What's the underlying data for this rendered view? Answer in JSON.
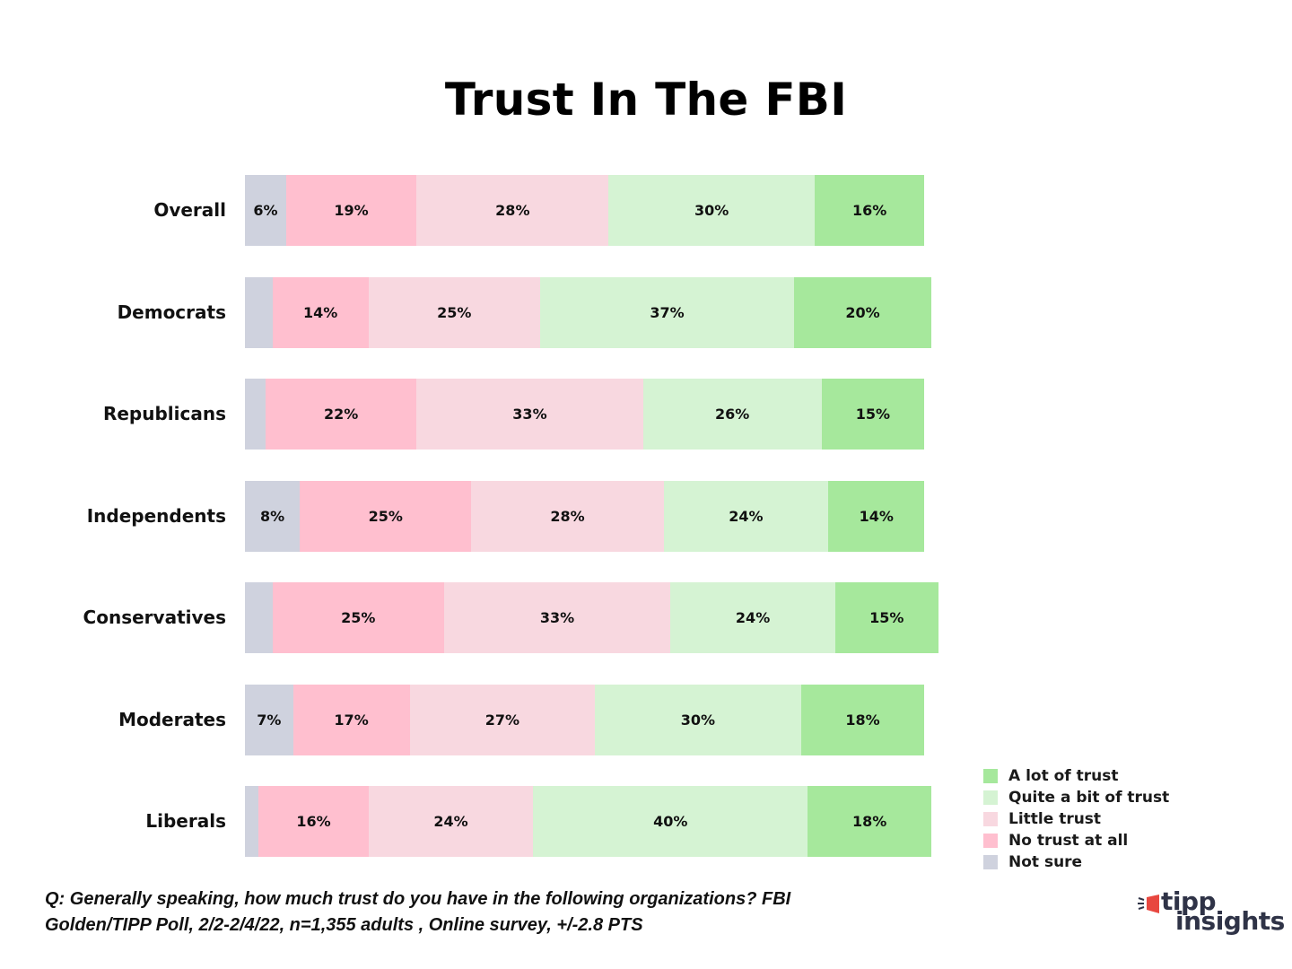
{
  "chart_data": {
    "type": "bar",
    "orientation": "horizontal",
    "stacked": true,
    "title": "Trust In The FBI",
    "xlabel": "",
    "ylabel": "",
    "grid": false,
    "legend_position": "bottom-right",
    "categories": [
      "Overall",
      "Democrats",
      "Republicans",
      "Independents",
      "Conservatives",
      "Moderates",
      "Liberals"
    ],
    "series": [
      {
        "name": "Not sure",
        "color": "#cfd2de",
        "values": [
          6,
          4,
          3,
          8,
          4,
          7,
          2
        ],
        "labels": [
          "6%",
          "",
          "",
          "8%",
          "",
          "7%",
          ""
        ]
      },
      {
        "name": "No trust at all",
        "color": "#ffbfcf",
        "values": [
          19,
          14,
          22,
          25,
          25,
          17,
          16
        ],
        "labels": [
          "19%",
          "14%",
          "22%",
          "25%",
          "25%",
          "17%",
          "16%"
        ]
      },
      {
        "name": "Little trust",
        "color": "#f8d8e0",
        "values": [
          28,
          25,
          33,
          28,
          33,
          27,
          24
        ],
        "labels": [
          "28%",
          "25%",
          "33%",
          "28%",
          "33%",
          "27%",
          "24%"
        ]
      },
      {
        "name": "Quite a bit of trust",
        "color": "#d5f3d3",
        "values": [
          30,
          37,
          26,
          24,
          24,
          30,
          40
        ],
        "labels": [
          "30%",
          "37%",
          "26%",
          "24%",
          "24%",
          "30%",
          "40%"
        ]
      },
      {
        "name": "A lot of trust",
        "color": "#a6e89c",
        "values": [
          16,
          20,
          15,
          14,
          15,
          18,
          18
        ],
        "labels": [
          "16%",
          "20%",
          "15%",
          "14%",
          "15%",
          "18%",
          "18%"
        ]
      }
    ],
    "legend": [
      "A lot of trust",
      "Quite a bit of trust",
      "Little trust",
      "No trust at all",
      "Not sure"
    ],
    "annotations": [
      "Q:  Generally speaking, how much trust do you have in the following organizations? FBI",
      "Golden/TIPP Poll, 2/2-2/4/22, n=1,355 adults , Online survey, +/-2.8 PTS"
    ]
  },
  "title": "Trust In The FBI",
  "legend_items": [
    {
      "label": "A lot of trust",
      "color": "#a6e89c"
    },
    {
      "label": "Quite a bit of trust",
      "color": "#d5f3d3"
    },
    {
      "label": "Little trust",
      "color": "#f8d8e0"
    },
    {
      "label": "No trust at all",
      "color": "#ffbfcf"
    },
    {
      "label": "Not sure",
      "color": "#cfd2de"
    }
  ],
  "footnote": {
    "line1": "Q:  Generally speaking, how much trust do you have in the following organizations? FBI",
    "line2": "Golden/TIPP Poll, 2/2-2/4/22, n=1,355 adults , Online survey, +/-2.8 PTS"
  },
  "logo": {
    "word1": "tipp",
    "word2": "insights",
    "accent_color": "#e8473f",
    "text_color": "#2f3347"
  }
}
